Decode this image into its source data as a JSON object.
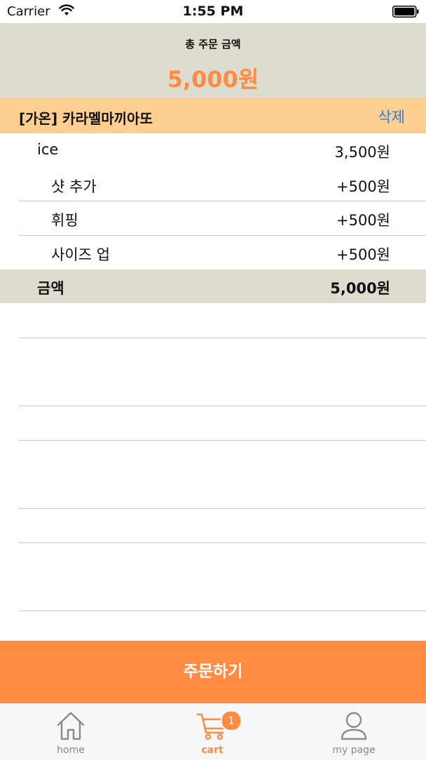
{
  "status_bar": {
    "carrier": "Carrier",
    "time": "1:55 PM"
  },
  "summary": {
    "label": "총 주문 금액",
    "total": "5,000원"
  },
  "cart": {
    "product_name": "[가온] 카라멜마끼아또",
    "delete_label": "삭제",
    "options": [
      {
        "name": "ice",
        "price": "3,500원"
      },
      {
        "name": "샷 추가",
        "price": "+500원"
      },
      {
        "name": "휘핑",
        "price": "+500원"
      },
      {
        "name": "사이즈 업",
        "price": "+500원"
      }
    ],
    "amount_label": "금액",
    "amount_value": "5,000원"
  },
  "order_button": {
    "label": "주문하기"
  },
  "tab_bar": {
    "tabs": [
      {
        "label": "home",
        "icon": "home-icon"
      },
      {
        "label": "cart",
        "icon": "cart-icon",
        "badge": "1",
        "active": true
      },
      {
        "label": "my page",
        "icon": "person-icon"
      }
    ]
  },
  "colors": {
    "accent": "#ff8c42",
    "header_bg": "#dcdccf",
    "product_bg": "#ffcf91",
    "link": "#2f7be0"
  }
}
